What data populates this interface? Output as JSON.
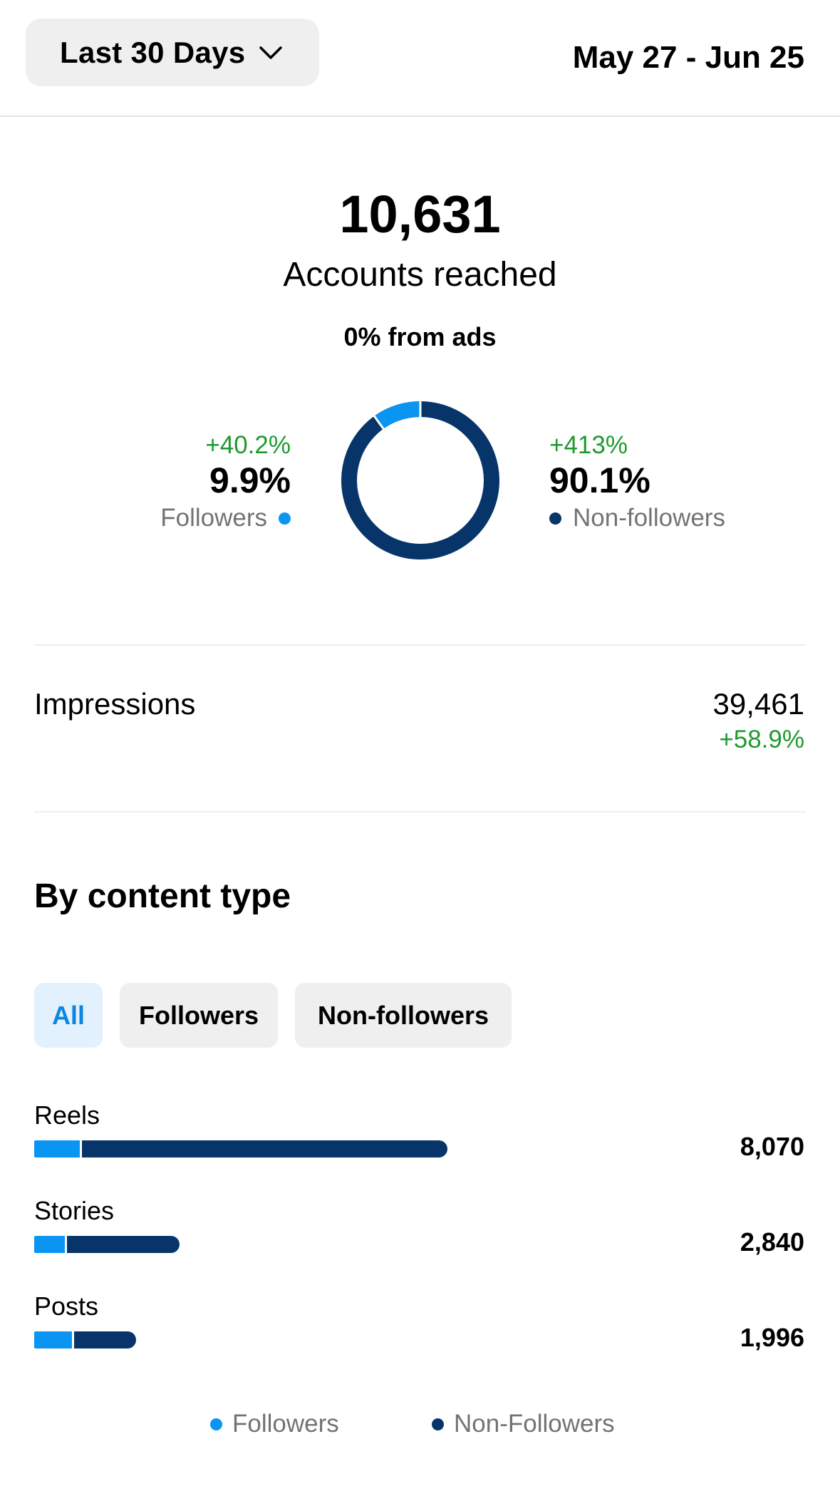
{
  "header": {
    "range_label": "Last 30 Days",
    "date_range": "May 27 - Jun 25"
  },
  "reach": {
    "value": "10,631",
    "label": "Accounts reached",
    "ads": "0% from ads"
  },
  "breakdown": {
    "followers": {
      "change": "+40.2%",
      "percent": "9.9%",
      "label": "Followers",
      "fraction": 0.099
    },
    "non_followers": {
      "change": "+413%",
      "percent": "90.1%",
      "label": "Non-followers",
      "fraction": 0.901
    }
  },
  "impressions": {
    "label": "Impressions",
    "value": "39,461",
    "change": "+58.9%"
  },
  "content_type": {
    "title": "By content type",
    "filters": [
      "All",
      "Followers",
      "Non-followers"
    ],
    "selected_filter": "All",
    "rows": [
      {
        "label": "Reels",
        "value": "8,070",
        "total": 8070,
        "followers_share": 0.11
      },
      {
        "label": "Stories",
        "value": "2,840",
        "total": 2840,
        "followers_share": 0.21
      },
      {
        "label": "Posts",
        "value": "1,996",
        "total": 1996,
        "followers_share": 0.37
      }
    ],
    "legend": [
      "Followers",
      "Non-Followers"
    ]
  },
  "colors": {
    "followers": "#0a95f3",
    "non_followers": "#07356a",
    "positive": "#1e9a2f"
  }
}
